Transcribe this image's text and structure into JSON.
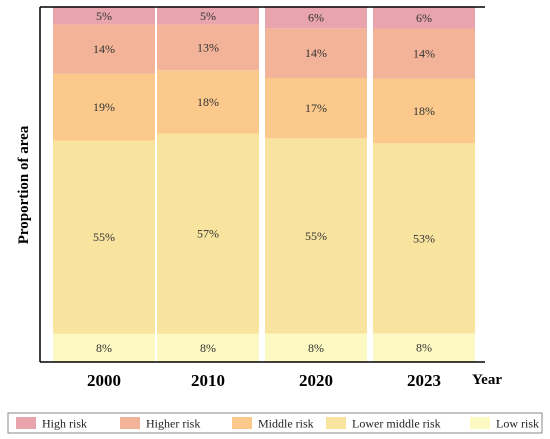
{
  "chart_data": {
    "type": "bar",
    "stacked": true,
    "categories": [
      "2000",
      "2010",
      "2020",
      "2023"
    ],
    "series": [
      {
        "name": "Low risk",
        "color": "#fcf9c2",
        "values": [
          8,
          8,
          8,
          8
        ]
      },
      {
        "name": "Lower middle risk",
        "color": "#f8e49e",
        "values": [
          55,
          57,
          55,
          53
        ]
      },
      {
        "name": "Middle risk",
        "color": "#fbc98b",
        "values": [
          19,
          18,
          17,
          18
        ]
      },
      {
        "name": "Higher risk",
        "color": "#f3b398",
        "values": [
          14,
          13,
          14,
          14
        ]
      },
      {
        "name": "High risk",
        "color": "#e8a5ad",
        "values": [
          5,
          5,
          6,
          6
        ]
      }
    ],
    "xlabel": "Year",
    "ylabel": "Proportion of area",
    "legend_position": "bottom",
    "legend_order": [
      "High risk",
      "Higher risk",
      "Middle risk",
      "Lower middle risk",
      "Low risk"
    ]
  }
}
